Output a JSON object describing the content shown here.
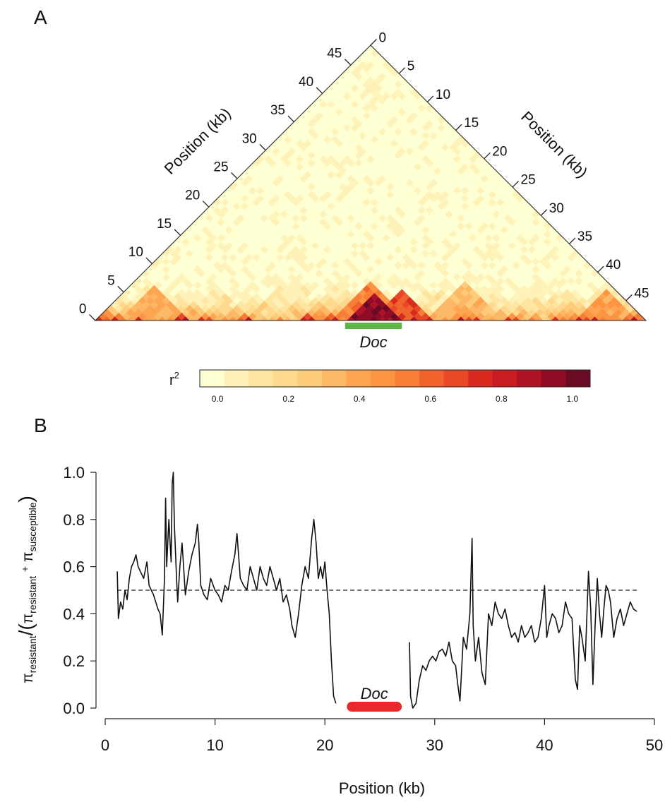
{
  "chart_data": [
    {
      "type": "heatmap",
      "panel_label": "A",
      "left_axis_label": "Position (kb)",
      "right_axis_label": "Position (kb)",
      "left_ticks": [
        "0",
        "5",
        "10",
        "15",
        "20",
        "25",
        "30",
        "35",
        "40",
        "45"
      ],
      "right_ticks": [
        "0",
        "5",
        "10",
        "15",
        "20",
        "25",
        "30",
        "35",
        "40",
        "45"
      ],
      "range_kb": [
        0,
        48.5
      ],
      "annotation": {
        "label": "Doc",
        "start_kb": 22,
        "end_kb": 27,
        "color": "#5cb545"
      },
      "ld_blocks": [
        {
          "start_kb": 22,
          "end_kb": 27,
          "r2": 1.0
        },
        {
          "start_kb": 24,
          "end_kb": 30,
          "r2": 0.7
        },
        {
          "start_kb": 21,
          "end_kb": 28,
          "r2": 0.55
        },
        {
          "start_kb": 29,
          "end_kb": 36,
          "r2": 0.35
        },
        {
          "start_kb": 2,
          "end_kb": 8,
          "r2": 0.4
        },
        {
          "start_kb": 42,
          "end_kb": 48,
          "r2": 0.45
        }
      ],
      "legend": {
        "title": "r",
        "title_sup": "2",
        "ticks": [
          "0.0",
          "0.2",
          "0.4",
          "0.6",
          "0.8",
          "1.0"
        ],
        "colors": [
          "#ffffd4",
          "#fff2b8",
          "#ffe6a0",
          "#fed98e",
          "#fecb7a",
          "#fdb866",
          "#fea552",
          "#fd9442",
          "#f87d37",
          "#f1632d",
          "#e84825",
          "#d92a20",
          "#c71c22",
          "#b01328",
          "#8f0b26",
          "#6a0a24"
        ]
      }
    },
    {
      "type": "line",
      "panel_label": "B",
      "xlabel": "Position (kb)",
      "ylabel": {
        "pi": "π",
        "res": "resistant",
        "sus": "susceptible",
        "plus": "+"
      },
      "xlim": [
        0,
        50
      ],
      "ylim": [
        0.0,
        1.0
      ],
      "xticks": [
        0,
        10,
        20,
        30,
        40,
        50
      ],
      "yticks": [
        "0.0",
        "0.2",
        "0.4",
        "0.6",
        "0.8",
        "1.0"
      ],
      "reference_line": {
        "y": 0.5,
        "style": "dashed"
      },
      "annotation": {
        "label": "Doc",
        "start_kb": 22,
        "end_kb": 27,
        "color": "#e8292b"
      },
      "series": [
        {
          "x": [
            1.1,
            1.2,
            1.4,
            1.6,
            1.8,
            2.0,
            2.2,
            2.4,
            2.6,
            2.8,
            3.0,
            3.2,
            3.5,
            3.8,
            4.0,
            4.2,
            4.4,
            4.6,
            4.8,
            5.0,
            5.2,
            5.4,
            5.5,
            5.6,
            5.8,
            6.0,
            6.1,
            6.2,
            6.3,
            6.5,
            6.6,
            6.8,
            7.0,
            7.3,
            7.6,
            7.9,
            8.2,
            8.4,
            8.5,
            8.7,
            9.0,
            9.3,
            9.6,
            10.0,
            10.3,
            10.6,
            10.9,
            11.2,
            11.5,
            11.8,
            12.0,
            12.3,
            12.6,
            12.9,
            13.2,
            13.5,
            13.8,
            14.1,
            14.4,
            14.7,
            15.0,
            15.3,
            15.6,
            15.9,
            16.2,
            16.5,
            16.8,
            17.0,
            17.3,
            17.6,
            17.9,
            18.2,
            18.5,
            18.8,
            19.0,
            19.2,
            19.4,
            19.6,
            19.8,
            20.0,
            20.2,
            20.4,
            20.6,
            20.8,
            21.0
          ],
          "values": [
            0.58,
            0.38,
            0.45,
            0.42,
            0.5,
            0.46,
            0.55,
            0.6,
            0.62,
            0.65,
            0.6,
            0.58,
            0.55,
            0.62,
            0.52,
            0.5,
            0.48,
            0.45,
            0.42,
            0.4,
            0.31,
            0.55,
            0.89,
            0.6,
            0.8,
            0.62,
            0.95,
            1.0,
            0.78,
            0.55,
            0.45,
            0.6,
            0.7,
            0.48,
            0.58,
            0.65,
            0.7,
            0.78,
            0.72,
            0.52,
            0.48,
            0.46,
            0.55,
            0.5,
            0.48,
            0.45,
            0.52,
            0.5,
            0.58,
            0.65,
            0.74,
            0.55,
            0.52,
            0.5,
            0.6,
            0.55,
            0.5,
            0.6,
            0.55,
            0.52,
            0.6,
            0.55,
            0.5,
            0.55,
            0.45,
            0.48,
            0.42,
            0.35,
            0.3,
            0.4,
            0.52,
            0.6,
            0.55,
            0.72,
            0.8,
            0.7,
            0.55,
            0.6,
            0.55,
            0.62,
            0.5,
            0.4,
            0.2,
            0.05,
            0.02
          ]
        },
        {
          "x": [
            27.7,
            27.8,
            28.0,
            28.3,
            28.6,
            28.9,
            29.2,
            29.5,
            29.8,
            30.1,
            30.4,
            30.7,
            31.0,
            31.3,
            31.6,
            31.9,
            32.1,
            32.3,
            32.6,
            32.9,
            33.2,
            33.4,
            33.5,
            33.7,
            34.0,
            34.3,
            34.6,
            34.9,
            35.2,
            35.5,
            35.8,
            36.1,
            36.4,
            36.7,
            37.0,
            37.3,
            37.6,
            37.9,
            38.2,
            38.5,
            38.8,
            39.1,
            39.4,
            39.7,
            40.0,
            40.2,
            40.4,
            40.7,
            41.0,
            41.3,
            41.6,
            41.9,
            42.2,
            42.5,
            42.8,
            43.0,
            43.2,
            43.4,
            43.7,
            44.0,
            44.2,
            44.4,
            44.6,
            44.8,
            45.0,
            45.2,
            45.4,
            45.6,
            45.8,
            46.0,
            46.3,
            46.6,
            46.9,
            47.2,
            47.5,
            47.8,
            48.1,
            48.4
          ],
          "values": [
            0.28,
            0.05,
            0.0,
            0.02,
            0.12,
            0.18,
            0.16,
            0.2,
            0.22,
            0.2,
            0.24,
            0.25,
            0.22,
            0.28,
            0.2,
            0.18,
            0.1,
            0.03,
            0.3,
            0.25,
            0.4,
            0.72,
            0.35,
            0.2,
            0.3,
            0.15,
            0.1,
            0.4,
            0.35,
            0.45,
            0.4,
            0.38,
            0.42,
            0.35,
            0.3,
            0.32,
            0.28,
            0.35,
            0.3,
            0.32,
            0.35,
            0.28,
            0.3,
            0.38,
            0.52,
            0.3,
            0.35,
            0.4,
            0.38,
            0.32,
            0.35,
            0.45,
            0.4,
            0.38,
            0.12,
            0.08,
            0.35,
            0.3,
            0.2,
            0.58,
            0.42,
            0.1,
            0.35,
            0.55,
            0.4,
            0.3,
            0.42,
            0.52,
            0.5,
            0.45,
            0.3,
            0.38,
            0.42,
            0.35,
            0.4,
            0.45,
            0.42,
            0.41
          ]
        }
      ]
    }
  ]
}
